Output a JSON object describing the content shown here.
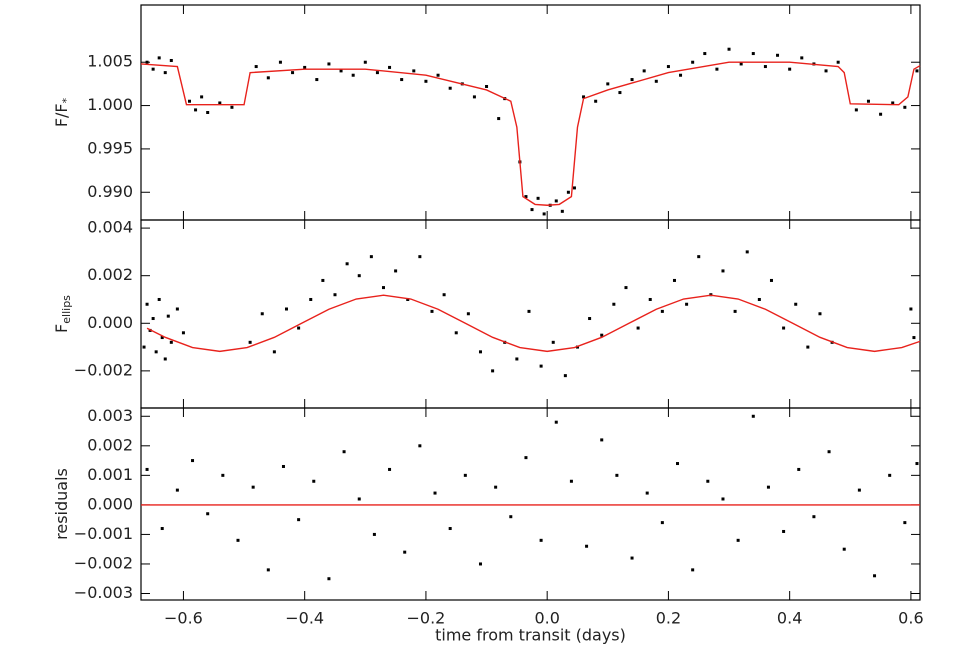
{
  "chart_data": [
    {
      "type": "scatter",
      "ylabel": "F/F",
      "ylabel_sub": "*",
      "xlim": [
        -0.67,
        0.615
      ],
      "ylim": [
        0.9868,
        1.0116
      ],
      "yticks": [
        {
          "value": 0.99,
          "label": "0.990"
        },
        {
          "value": 0.995,
          "label": "0.995"
        },
        {
          "value": 1.0,
          "label": "1.000"
        },
        {
          "value": 1.005,
          "label": "1.005"
        }
      ],
      "series": [
        {
          "style": "points",
          "color": "#000000",
          "x": [
            -0.66,
            -0.65,
            -0.64,
            -0.63,
            -0.62,
            -0.59,
            -0.58,
            -0.57,
            -0.56,
            -0.54,
            -0.52,
            -0.48,
            -0.46,
            -0.44,
            -0.42,
            -0.4,
            -0.38,
            -0.36,
            -0.34,
            -0.32,
            -0.3,
            -0.28,
            -0.26,
            -0.24,
            -0.22,
            -0.2,
            -0.18,
            -0.16,
            -0.14,
            -0.12,
            -0.1,
            -0.08,
            -0.07,
            -0.045,
            -0.035,
            -0.025,
            -0.015,
            -0.005,
            0.005,
            0.015,
            0.025,
            0.035,
            0.045,
            0.06,
            0.08,
            0.1,
            0.12,
            0.14,
            0.16,
            0.18,
            0.2,
            0.22,
            0.24,
            0.26,
            0.28,
            0.3,
            0.32,
            0.34,
            0.36,
            0.38,
            0.4,
            0.42,
            0.44,
            0.46,
            0.48,
            0.51,
            0.53,
            0.55,
            0.57,
            0.59,
            0.61
          ],
          "values": [
            1.005,
            1.0042,
            1.0055,
            1.0038,
            1.0052,
            1.0005,
            0.9995,
            1.001,
            0.9992,
            1.0003,
            0.9998,
            1.0045,
            1.0032,
            1.005,
            1.0038,
            1.0044,
            1.003,
            1.0048,
            1.004,
            1.0035,
            1.005,
            1.0038,
            1.0044,
            1.003,
            1.004,
            1.0028,
            1.0035,
            1.002,
            1.0025,
            1.001,
            1.0022,
            0.9985,
            1.0008,
            0.9935,
            0.9895,
            0.988,
            0.9893,
            0.9875,
            0.9885,
            0.989,
            0.9878,
            0.99,
            0.9905,
            1.001,
            1.0005,
            1.0025,
            1.0015,
            1.003,
            1.004,
            1.0028,
            1.0045,
            1.0035,
            1.005,
            1.006,
            1.0042,
            1.0065,
            1.0048,
            1.006,
            1.0045,
            1.0058,
            1.0042,
            1.0055,
            1.0048,
            1.004,
            1.005,
            0.9995,
            1.0005,
            0.999,
            1.0003,
            0.9998,
            1.004
          ]
        },
        {
          "style": "line",
          "color": "#e8221c",
          "x": [
            -0.67,
            -0.61,
            -0.595,
            -0.5,
            -0.49,
            -0.4,
            -0.3,
            -0.2,
            -0.1,
            -0.06,
            -0.05,
            -0.04,
            -0.02,
            0,
            0.02,
            0.04,
            0.05,
            0.06,
            0.1,
            0.2,
            0.3,
            0.4,
            0.48,
            0.49,
            0.5,
            0.58,
            0.595,
            0.605,
            0.615
          ],
          "values": [
            1.0048,
            1.0045,
            1.0001,
            1.0001,
            1.0038,
            1.0042,
            1.0042,
            1.0035,
            1.0018,
            1.0005,
            0.9975,
            0.9895,
            0.9886,
            0.9885,
            0.9886,
            0.9895,
            0.9975,
            1.0008,
            1.0018,
            1.0038,
            1.005,
            1.005,
            1.0045,
            1.0038,
            1.0002,
            1.0001,
            1.001,
            1.0042,
            1.0046
          ]
        }
      ]
    },
    {
      "type": "scatter",
      "ylabel": "F",
      "ylabel_sub": "ellips",
      "xlim": [
        -0.67,
        0.615
      ],
      "ylim": [
        -0.00356,
        0.00434
      ],
      "yticks": [
        {
          "value": -0.002,
          "label": "−0.002"
        },
        {
          "value": 0,
          "label": "0.000"
        },
        {
          "value": 0.002,
          "label": "0.002"
        },
        {
          "value": 0.004,
          "label": "0.004"
        }
      ],
      "series": [
        {
          "style": "points",
          "color": "#000000",
          "x": [
            -0.665,
            -0.66,
            -0.655,
            -0.65,
            -0.645,
            -0.64,
            -0.635,
            -0.63,
            -0.625,
            -0.62,
            -0.61,
            -0.6,
            -0.49,
            -0.47,
            -0.45,
            -0.43,
            -0.41,
            -0.39,
            -0.37,
            -0.35,
            -0.33,
            -0.31,
            -0.29,
            -0.27,
            -0.25,
            -0.23,
            -0.21,
            -0.19,
            -0.17,
            -0.15,
            -0.13,
            -0.11,
            -0.09,
            -0.07,
            -0.05,
            -0.03,
            -0.01,
            0.01,
            0.03,
            0.05,
            0.07,
            0.09,
            0.11,
            0.13,
            0.15,
            0.17,
            0.19,
            0.21,
            0.23,
            0.25,
            0.27,
            0.29,
            0.31,
            0.33,
            0.35,
            0.37,
            0.39,
            0.41,
            0.43,
            0.45,
            0.47,
            0.6,
            0.605
          ],
          "values": [
            -0.001,
            0.0008,
            -0.0003,
            0.0002,
            -0.0012,
            0.001,
            -0.0006,
            -0.0015,
            0.0003,
            -0.0008,
            0.0006,
            -0.0004,
            -0.0008,
            0.0004,
            -0.0012,
            0.0006,
            -0.0002,
            0.001,
            0.0018,
            0.0012,
            0.0025,
            0.002,
            0.0028,
            0.0015,
            0.0022,
            0.001,
            0.0028,
            0.0005,
            0.0012,
            -0.0004,
            0.0004,
            -0.0012,
            -0.002,
            -0.0008,
            -0.0015,
            0.0005,
            -0.0018,
            -0.0008,
            -0.0022,
            -0.001,
            0.0002,
            -0.0005,
            0.0008,
            0.0015,
            -0.0002,
            0.001,
            0.0005,
            0.0018,
            0.0008,
            0.0028,
            0.0012,
            0.0022,
            0.0005,
            0.003,
            0.001,
            0.0018,
            -0.0002,
            0.0008,
            -0.001,
            0.0004,
            -0.0008,
            0.0006,
            -0.0006
          ]
        },
        {
          "style": "line",
          "color": "#e8221c",
          "x": [
            -0.66,
            -0.63,
            -0.585,
            -0.54,
            -0.495,
            -0.45,
            -0.405,
            -0.36,
            -0.315,
            -0.27,
            -0.225,
            -0.18,
            -0.135,
            -0.09,
            -0.045,
            0,
            0.045,
            0.09,
            0.135,
            0.18,
            0.225,
            0.27,
            0.315,
            0.36,
            0.405,
            0.45,
            0.495,
            0.54,
            0.585,
            0.615
          ],
          "values": [
            -0.00021,
            -0.00059,
            -0.00102,
            -0.00118,
            -0.00102,
            -0.00059,
            0,
            0.00059,
            0.00102,
            0.00118,
            0.00102,
            0.00059,
            0,
            -0.00059,
            -0.00102,
            -0.00118,
            -0.00102,
            -0.00059,
            0,
            0.00059,
            0.00102,
            0.00118,
            0.00102,
            0.00059,
            0,
            -0.00059,
            -0.00102,
            -0.00118,
            -0.00102,
            -0.00076
          ]
        }
      ]
    },
    {
      "type": "scatter",
      "ylabel": "residuals",
      "xlabel": "time from transit (days)",
      "xlim": [
        -0.67,
        0.615
      ],
      "ylim": [
        -0.00322,
        0.00328
      ],
      "xticks": [
        {
          "value": -0.6,
          "label": "−0.6"
        },
        {
          "value": -0.4,
          "label": "−0.4"
        },
        {
          "value": -0.2,
          "label": "−0.2"
        },
        {
          "value": 0,
          "label": "0.0"
        },
        {
          "value": 0.2,
          "label": "0.2"
        },
        {
          "value": 0.4,
          "label": "0.4"
        },
        {
          "value": 0.6,
          "label": "0.6"
        }
      ],
      "yticks": [
        {
          "value": -0.003,
          "label": "−0.003"
        },
        {
          "value": -0.002,
          "label": "−0.002"
        },
        {
          "value": -0.001,
          "label": "−0.001"
        },
        {
          "value": 0,
          "label": "0.000"
        },
        {
          "value": 0.001,
          "label": "0.001"
        },
        {
          "value": 0.002,
          "label": "0.002"
        },
        {
          "value": 0.003,
          "label": "0.003"
        }
      ],
      "series": [
        {
          "style": "points",
          "color": "#000000",
          "x": [
            -0.66,
            -0.635,
            -0.61,
            -0.585,
            -0.56,
            -0.535,
            -0.51,
            -0.485,
            -0.46,
            -0.435,
            -0.41,
            -0.385,
            -0.36,
            -0.335,
            -0.31,
            -0.285,
            -0.26,
            -0.235,
            -0.21,
            -0.185,
            -0.16,
            -0.135,
            -0.11,
            -0.085,
            -0.06,
            -0.035,
            -0.01,
            0.015,
            0.04,
            0.065,
            0.09,
            0.115,
            0.14,
            0.165,
            0.19,
            0.215,
            0.24,
            0.265,
            0.29,
            0.315,
            0.34,
            0.365,
            0.39,
            0.415,
            0.44,
            0.465,
            0.49,
            0.515,
            0.54,
            0.565,
            0.59,
            0.61
          ],
          "values": [
            0.0012,
            -0.0008,
            0.0005,
            0.0015,
            -0.0003,
            0.001,
            -0.0012,
            0.0006,
            -0.0022,
            0.0013,
            -0.0005,
            0.0008,
            -0.0025,
            0.0018,
            0.0002,
            -0.001,
            0.0012,
            -0.0016,
            0.002,
            0.0004,
            -0.0008,
            0.001,
            -0.002,
            0.0006,
            -0.0004,
            0.0016,
            -0.0012,
            0.0028,
            0.0008,
            -0.0014,
            0.0022,
            0.001,
            -0.0018,
            0.0004,
            -0.0006,
            0.0014,
            -0.0022,
            0.0008,
            0.0002,
            -0.0012,
            0.003,
            0.0006,
            -0.0009,
            0.0012,
            -0.0004,
            0.0018,
            -0.0015,
            0.0005,
            -0.0024,
            0.001,
            -0.0006,
            0.0014
          ]
        },
        {
          "style": "line",
          "color": "#e8221c",
          "x": [
            -0.67,
            0.615
          ],
          "values": [
            0,
            0
          ]
        }
      ]
    }
  ]
}
